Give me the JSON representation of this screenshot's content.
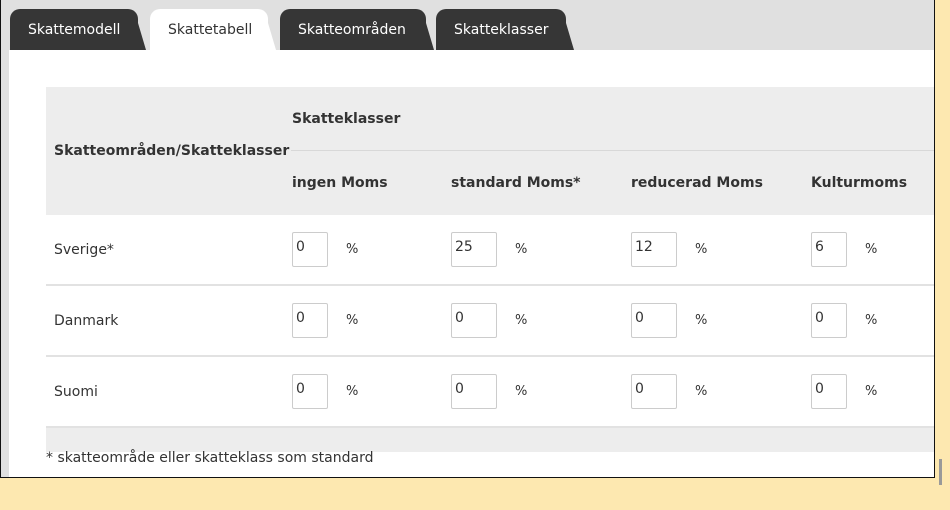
{
  "tabs": [
    {
      "label": "Skattemodell",
      "active": false
    },
    {
      "label": "Skattetabell",
      "active": true
    },
    {
      "label": "Skatteområden",
      "active": false
    },
    {
      "label": "Skatteklasser",
      "active": false
    }
  ],
  "table": {
    "corner_header": "Skatteområden/Skatteklasser",
    "group_header": "Skatteklasser",
    "columns": [
      "ingen Moms",
      "standard Moms*",
      "reducerad Moms",
      "Kulturmoms"
    ],
    "unit": "%",
    "rows": [
      {
        "name": "Sverige*",
        "values": [
          "0",
          "25",
          "12",
          "6"
        ]
      },
      {
        "name": "Danmark",
        "values": [
          "0",
          "0",
          "0",
          "0"
        ]
      },
      {
        "name": "Suomi",
        "values": [
          "0",
          "0",
          "0",
          "0"
        ]
      }
    ]
  },
  "footnote": "* skatteområde eller skatteklass som standard"
}
